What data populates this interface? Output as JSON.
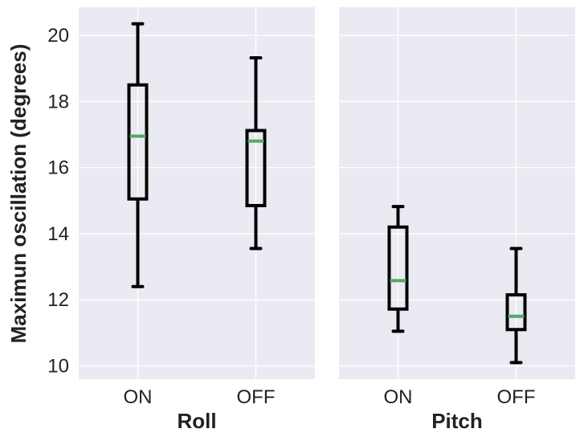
{
  "chart_data": {
    "type": "box",
    "ylabel": "Maximun oscillation (degrees)",
    "ylim": [
      9.6,
      20.85
    ],
    "yticks": [
      10,
      12,
      14,
      16,
      18,
      20
    ],
    "grid": true,
    "colors": {
      "background": "#EAEAF2",
      "grid": "#FFFFFF",
      "box": "#000000",
      "median": "#55A868"
    },
    "panels": [
      {
        "xlabel": "Roll",
        "categories": [
          "ON",
          "OFF"
        ],
        "boxes": [
          {
            "category": "ON",
            "whisker_low": 12.4,
            "q1": 15.05,
            "median": 16.95,
            "q3": 18.5,
            "whisker_high": 20.35
          },
          {
            "category": "OFF",
            "whisker_low": 13.55,
            "q1": 14.85,
            "median": 16.8,
            "q3": 17.12,
            "whisker_high": 19.32
          }
        ]
      },
      {
        "xlabel": "Pitch",
        "categories": [
          "ON",
          "OFF"
        ],
        "boxes": [
          {
            "category": "ON",
            "whisker_low": 11.05,
            "q1": 11.72,
            "median": 12.58,
            "q3": 14.2,
            "whisker_high": 14.82
          },
          {
            "category": "OFF",
            "whisker_low": 10.1,
            "q1": 11.1,
            "median": 11.5,
            "q3": 12.15,
            "whisker_high": 13.55
          }
        ]
      }
    ]
  }
}
